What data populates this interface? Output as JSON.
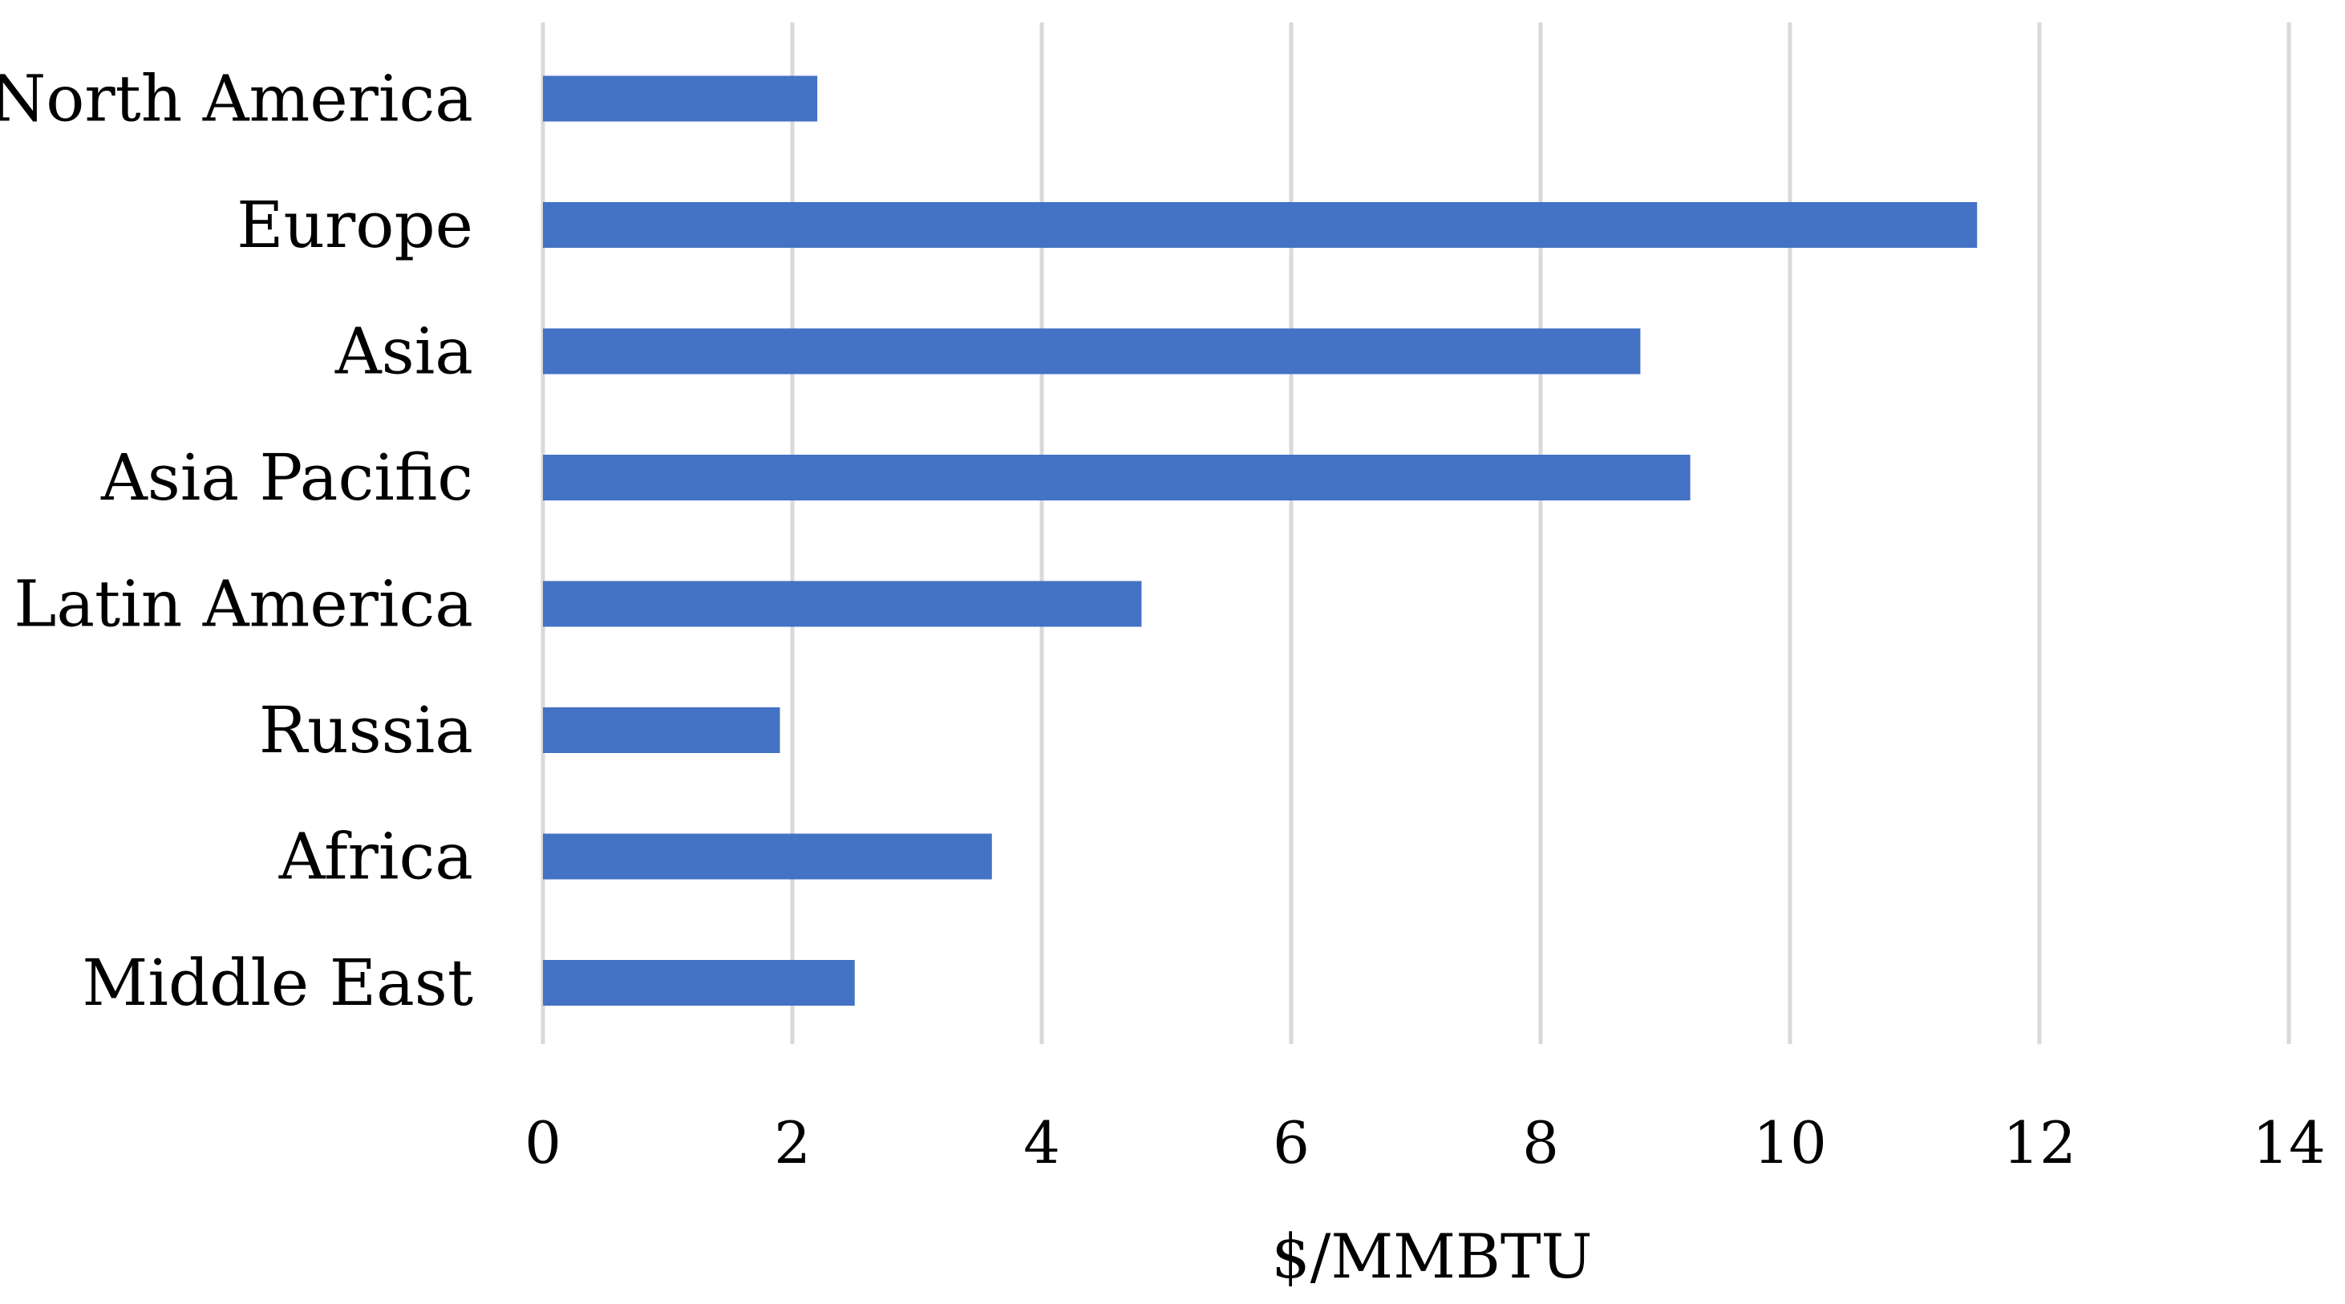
{
  "chart_data": {
    "type": "bar",
    "orientation": "horizontal",
    "categories": [
      "North America",
      "Europe",
      "Asia",
      "Asia Pacific",
      "Latin America",
      "Russia",
      "Africa",
      "Middle East"
    ],
    "values": [
      2.2,
      11.5,
      8.8,
      9.2,
      4.8,
      1.9,
      3.6,
      2.5
    ],
    "xlabel": "$/MMBTU",
    "ylabel": "",
    "xlim": [
      0,
      14
    ],
    "xticks": [
      0,
      2,
      4,
      6,
      8,
      10,
      12,
      14
    ],
    "grid": "vertical",
    "legend": "none",
    "colors": {
      "bar": "#4472c4",
      "grid": "#d9d9d9"
    }
  }
}
